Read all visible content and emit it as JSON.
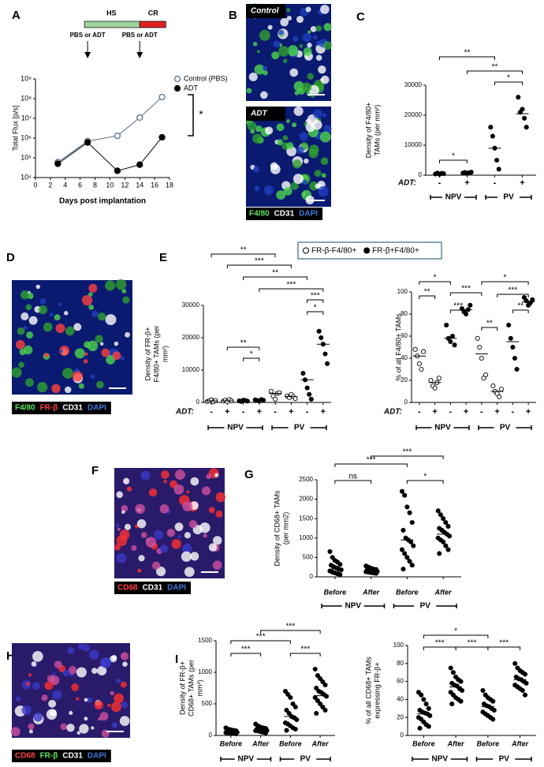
{
  "letters": [
    "A",
    "B",
    "C",
    "D",
    "E",
    "F",
    "G",
    "H",
    "I"
  ],
  "image_labels": [
    "Control",
    "ADT"
  ],
  "stain_legends": [
    [
      {
        "text": "F4/80",
        "color": "#5ee65e"
      },
      {
        "text": "CD31",
        "color": "#ffffff"
      },
      {
        "text": "DAPI",
        "color": "#3d7be0"
      }
    ],
    [
      {
        "text": "F4/80",
        "color": "#5ee65e"
      },
      {
        "text": "FR-β",
        "color": "#ff4040"
      },
      {
        "text": "CD31",
        "color": "#ffffff"
      },
      {
        "text": "DAPI",
        "color": "#3d7be0"
      }
    ],
    [
      {
        "text": "CD68",
        "color": "#ff4040"
      },
      {
        "text": "CD31",
        "color": "#ffffff"
      },
      {
        "text": "DAPI",
        "color": "#3d7be0"
      }
    ],
    [
      {
        "text": "CD68",
        "color": "#ff4040"
      },
      {
        "text": "FR-β",
        "color": "#5ee65e"
      },
      {
        "text": "CD31",
        "color": "#ffffff"
      },
      {
        "text": "DAPI",
        "color": "#3d7be0"
      }
    ]
  ],
  "chart_data": [
    {
      "type": "line",
      "xlabel": "Days post implantation",
      "ylabel": [
        "Total Flux [p/s]"
      ],
      "annotations": [
        "HS",
        "CR",
        "PBS or ADT",
        "PBS or ADT",
        "*"
      ],
      "x": [
        3,
        7,
        11,
        14,
        17
      ],
      "xlim": [
        0,
        18
      ],
      "xticks": [
        0,
        2,
        4,
        6,
        8,
        10,
        12,
        14,
        16,
        18
      ],
      "log_y": true,
      "ylim": [
        10000,
        1000000000
      ],
      "yticks": [
        {
          "value": 10000,
          "label": "10⁴"
        },
        {
          "value": 100000,
          "label": "10⁵"
        },
        {
          "value": 1000000,
          "label": "10⁶"
        },
        {
          "value": 10000000,
          "label": "10⁷"
        },
        {
          "value": 100000000,
          "label": "10⁸"
        },
        {
          "value": 1000000000,
          "label": "10⁹"
        }
      ],
      "series": [
        {
          "name": "Control (PBS)",
          "color": "#5a6f86",
          "filled": false,
          "values": [
            60000,
            700000,
            1300000,
            11000000,
            120000000
          ]
        },
        {
          "name": "ADT",
          "color": "#000000",
          "filled": true,
          "values": [
            50000,
            600000,
            22000,
            45000,
            1100000
          ]
        }
      ]
    },
    {
      "type": "dot",
      "ylabel": [
        "Density of F4/80+",
        "TAMs (per mm²)"
      ],
      "adt_label": "ADT:",
      "groups": [
        "NPV",
        "PV"
      ],
      "categories": [
        "-",
        "+",
        "-",
        "+"
      ],
      "ylim": [
        0,
        30000
      ],
      "yticks": [
        0,
        10000,
        20000,
        30000
      ],
      "annotations": [
        "**",
        "**",
        "*",
        "*"
      ],
      "series": [
        {
          "filled": true,
          "values": [
            [
              400,
              700,
              300,
              600,
              500
            ],
            [
              700,
              900,
              600,
              800,
              1000
            ],
            [
              16000,
              13000,
              9000,
              5000,
              2000
            ],
            [
              26000,
              21000,
              22000,
              19000,
              16000
            ]
          ],
          "medians": [
            500,
            800,
            9000,
            20500
          ]
        }
      ]
    },
    {
      "type": "dot",
      "ylabel": [
        "Density of FR-β+",
        "F4/80+ TAMs (per",
        "mm²)"
      ],
      "adt_label": "ADT:",
      "groups": [
        "NPV",
        "PV"
      ],
      "categories": [
        "-",
        "+",
        "-",
        "+",
        "-",
        "+",
        "-",
        "+"
      ],
      "ylim": [
        0,
        30000
      ],
      "yticks": [
        0,
        10000,
        20000,
        30000
      ],
      "annotations": [
        "**",
        "***",
        "**",
        "***",
        "***",
        "*",
        "**",
        "*"
      ],
      "series": [
        {
          "name": "FR-β-F4/80+",
          "filled": false,
          "values": [
            [
              300,
              500,
              800,
              200,
              600
            ],
            [
              400,
              700,
              300,
              900,
              500
            ],
            null,
            null,
            [
              3500,
              2000,
              1000,
              2800,
              3000
            ],
            [
              2000,
              1500,
              2500,
              1800,
              1200
            ],
            null,
            null
          ],
          "medians": [
            500,
            500,
            null,
            null,
            2800,
            1800,
            null,
            null
          ]
        },
        {
          "name": "FR-β+F4/80+",
          "filled": true,
          "values": [
            null,
            null,
            [
              500,
              300,
              700,
              600,
              400
            ],
            [
              800,
              600,
              400,
              900,
              700
            ],
            null,
            null,
            [
              9000,
              7000,
              4500,
              2500,
              1000
            ],
            [
              22000,
              20000,
              18000,
              15000,
              12000
            ]
          ],
          "medians": [
            null,
            null,
            500,
            700,
            null,
            null,
            7000,
            18000
          ]
        }
      ]
    },
    {
      "type": "dot",
      "ylabel": [
        "% of all F4/80+ TAMs"
      ],
      "adt_label": "ADT:",
      "groups": [
        "NPV",
        "PV"
      ],
      "categories": [
        "-",
        "+",
        "-",
        "+",
        "-",
        "+",
        "-",
        "+"
      ],
      "ylim": [
        0,
        100
      ],
      "yticks": [
        0,
        20,
        40,
        60,
        80,
        100
      ],
      "annotations": [
        "*",
        "**",
        "***",
        "***",
        "**",
        "*",
        "***",
        "**"
      ],
      "series": [
        {
          "filled": false,
          "values": [
            [
              48,
              42,
              35,
              30,
              46
            ],
            [
              20,
              15,
              13,
              18,
              22
            ],
            null,
            null,
            [
              58,
              50,
              40,
              22,
              25
            ],
            [
              15,
              10,
              8,
              5,
              12
            ],
            null,
            null
          ],
          "medians": [
            42,
            18,
            null,
            null,
            44,
            10,
            null,
            null
          ]
        },
        {
          "filled": true,
          "values": [
            null,
            null,
            [
              70,
              58,
              55,
              60,
              52
            ],
            [
              85,
              82,
              80,
              84,
              88
            ],
            null,
            null,
            [
              70,
              58,
              50,
              40,
              30
            ],
            [
              95,
              92,
              88,
              90,
              93
            ]
          ],
          "medians": [
            null,
            null,
            58,
            84,
            null,
            null,
            55,
            91
          ]
        }
      ]
    },
    {
      "type": "dot",
      "ylabel": [
        "Density of CD68+ TAMs",
        "(per mm2)"
      ],
      "groups": [
        "NPV",
        "PV"
      ],
      "categories": [
        "Before",
        "After",
        "Before",
        "After"
      ],
      "ylim": [
        0,
        2500
      ],
      "yticks": [
        0,
        500,
        1000,
        1500,
        2000,
        2500
      ],
      "annotations": [
        "***",
        "***",
        "ns",
        "*"
      ],
      "series": [
        {
          "filled": true,
          "values": [
            [
              650,
              500,
              420,
              380,
              320,
              300,
              260,
              230,
              200,
              180,
              150,
              120,
              100,
              80,
              60
            ],
            [
              280,
              250,
              220,
              200,
              190,
              180,
              170,
              160,
              150,
              140,
              130,
              120,
              110,
              100,
              90
            ],
            [
              2200,
              2100,
              1800,
              1650,
              1400,
              1200,
              1000,
              950,
              900,
              800,
              700,
              600,
              500,
              400,
              300,
              200
            ],
            [
              1700,
              1600,
              1500,
              1400,
              1300,
              1250,
              1200,
              1150,
              1100,
              1050,
              1000,
              950,
              900,
              800,
              700,
              600
            ]
          ],
          "medians": [
            200,
            160,
            950,
            1100
          ]
        }
      ]
    },
    {
      "type": "dot",
      "ylabel": [
        "Density of FR-β+",
        "CD68+ TAMs (per",
        "mm²)"
      ],
      "groups": [
        "NPV",
        "PV"
      ],
      "categories": [
        "Before",
        "After",
        "Before",
        "After"
      ],
      "ylim": [
        0,
        1500
      ],
      "yticks": [
        0,
        500,
        1000,
        1500
      ],
      "annotations": [
        "***",
        "***",
        "***",
        "***"
      ],
      "series": [
        {
          "filled": true,
          "values": [
            [
              120,
              100,
              90,
              80,
              75,
              70,
              65,
              60,
              55,
              50,
              45,
              40,
              35,
              30,
              25
            ],
            [
              180,
              150,
              130,
              120,
              110,
              100,
              95,
              90,
              85,
              80,
              75,
              70,
              60,
              50,
              40
            ],
            [
              700,
              650,
              600,
              500,
              450,
              400,
              350,
              300,
              280,
              250,
              200,
              180,
              150,
              120,
              100,
              80
            ],
            [
              1050,
              950,
              900,
              850,
              800,
              750,
              700,
              680,
              650,
              620,
              600,
              550,
              500,
              450,
              400,
              350
            ]
          ],
          "medians": [
            60,
            90,
            300,
            630
          ]
        }
      ]
    },
    {
      "type": "dot",
      "ylabel": [
        "% of all CD68+ TAMs",
        "expressing FR-β+"
      ],
      "groups": [
        "NPV",
        "PV"
      ],
      "categories": [
        "Before",
        "After",
        "Before",
        "After"
      ],
      "ylim": [
        0,
        100
      ],
      "yticks": [
        0,
        20,
        40,
        60,
        80,
        100
      ],
      "annotations": [
        "*",
        "***",
        "***",
        "***"
      ],
      "series": [
        {
          "filled": true,
          "values": [
            [
              48,
              45,
              40,
              35,
              30,
              28,
              26,
              25,
              24,
              22,
              20,
              18,
              15,
              12,
              10,
              8
            ],
            [
              75,
              70,
              65,
              62,
              60,
              58,
              56,
              55,
              52,
              50,
              48,
              45,
              42,
              40,
              38,
              35
            ],
            [
              50,
              45,
              42,
              40,
              38,
              35,
              33,
              32,
              30,
              28,
              26,
              24,
              22,
              20,
              18
            ],
            [
              80,
              75,
              72,
              70,
              68,
              65,
              63,
              62,
              60,
              58,
              56,
              54,
              52,
              50,
              45
            ]
          ],
          "medians": [
            24,
            54,
            32,
            62
          ]
        }
      ]
    }
  ]
}
